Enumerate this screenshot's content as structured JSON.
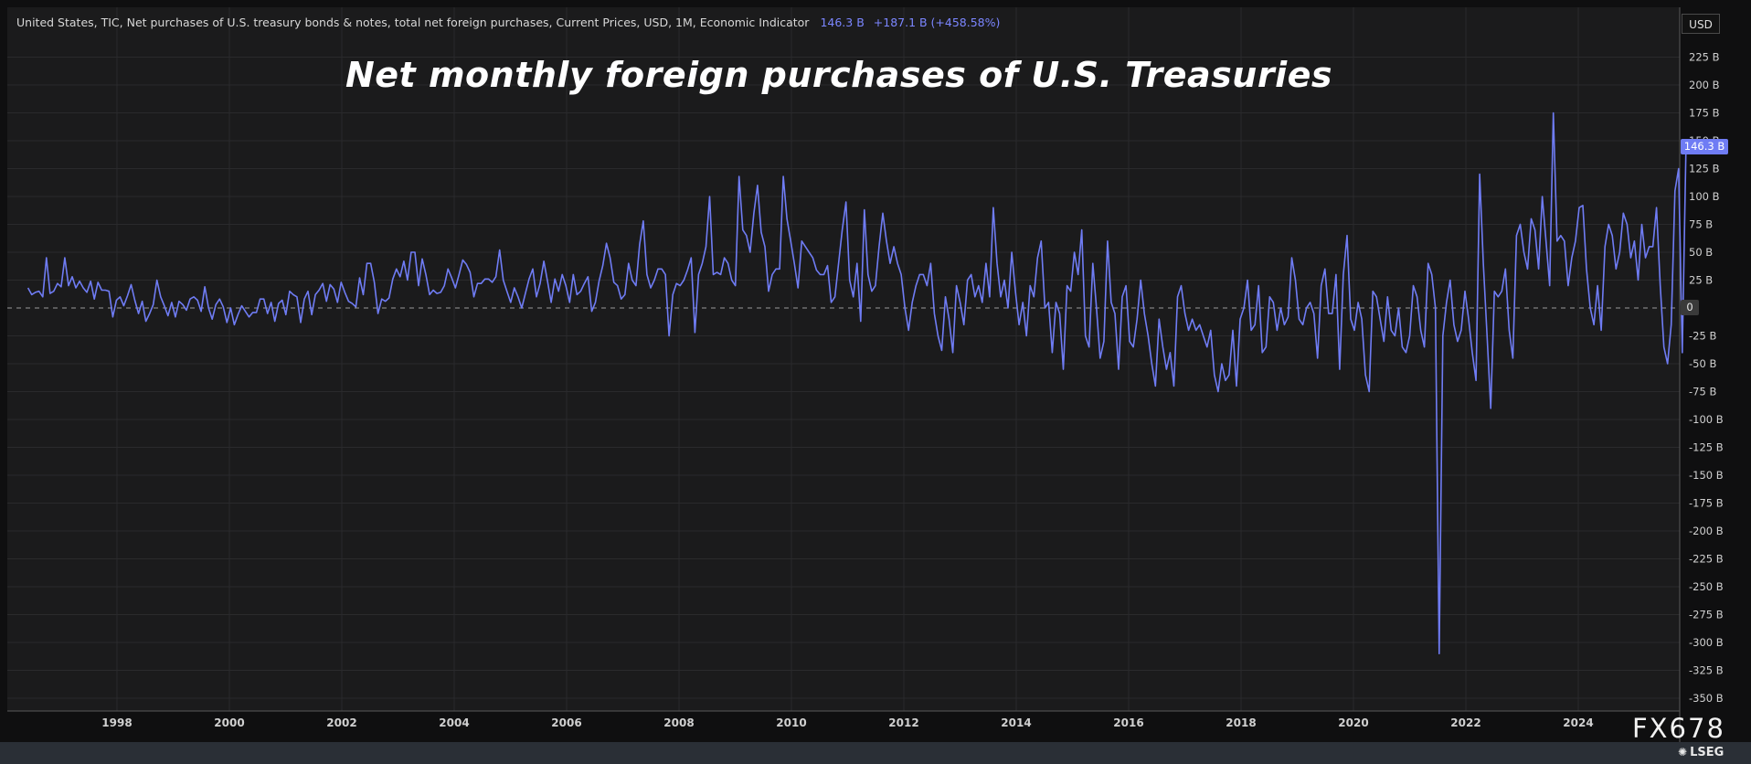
{
  "header": {
    "series_description": "United States, TIC, Net purchases of U.S. treasury bonds & notes, total net foreign purchases, Current Prices, USD, 1M, Economic Indicator",
    "last_value": "146.3 B",
    "change": "+187.1 B (+458.58%)"
  },
  "currency_button": "USD",
  "last_value_badge": "146.3 B",
  "zero_badge": "0",
  "watermark": {
    "code": "FX678",
    "logo": "LSEG",
    "logo_icon": "lseg-emblem-icon"
  },
  "colors": {
    "background": "#1b1b1c",
    "line": "#6f7cf4",
    "grid": "#2b2b2d",
    "text": "#d7d7d7"
  },
  "chart_data": {
    "type": "line",
    "title": "Net monthly foreign purchases of U.S. Treasuries",
    "xlabel": "",
    "ylabel": "",
    "unit": "B USD",
    "x_ticks": [
      "1998",
      "2000",
      "2002",
      "2004",
      "2006",
      "2008",
      "2010",
      "2012",
      "2014",
      "2016",
      "2018",
      "2020",
      "2022",
      "2024"
    ],
    "y_ticks": [
      "225 B",
      "200 B",
      "175 B",
      "150 B",
      "125 B",
      "100 B",
      "75 B",
      "50 B",
      "25 B",
      "0",
      "-25 B",
      "-50 B",
      "-75 B",
      "-100 B",
      "-125 B",
      "-150 B",
      "-175 B",
      "-200 B",
      "-225 B",
      "-250 B",
      "-275 B",
      "-300 B",
      "-325 B",
      "-350 B"
    ],
    "ylim": [
      -350,
      250
    ],
    "xlim": [
      "1996-06",
      "2025-12"
    ],
    "grid": true,
    "zero_line": "dashed",
    "series": [
      {
        "start": "1996-06",
        "frequency": "monthly",
        "values": [
          18,
          12,
          14,
          15,
          10,
          45,
          13,
          15,
          22,
          19,
          45,
          20,
          28,
          18,
          24,
          18,
          14,
          24,
          8,
          23,
          16,
          16,
          15,
          -8,
          7,
          10,
          2,
          11,
          21,
          7,
          -5,
          6,
          -12,
          -5,
          3,
          25,
          10,
          2,
          -7,
          5,
          -8,
          6,
          3,
          -2,
          8,
          10,
          7,
          -3,
          19,
          0,
          -10,
          3,
          8,
          1,
          -13,
          0,
          -15,
          -6,
          2,
          -3,
          -8,
          -4,
          -4,
          8,
          8,
          -5,
          5,
          -12,
          4,
          7,
          -6,
          15,
          12,
          10,
          -13,
          8,
          15,
          -6,
          12,
          16,
          22,
          6,
          21,
          17,
          5,
          23,
          14,
          6,
          4,
          1,
          27,
          12,
          40,
          40,
          23,
          -5,
          8,
          6,
          9,
          26,
          35,
          28,
          42,
          25,
          50,
          50,
          20,
          44,
          30,
          12,
          16,
          13,
          14,
          20,
          35,
          27,
          18,
          30,
          43,
          39,
          32,
          10,
          22,
          22,
          26,
          26,
          23,
          28,
          52,
          25,
          15,
          5,
          18,
          10,
          0,
          13,
          26,
          35,
          10,
          22,
          42,
          24,
          5,
          26,
          15,
          30,
          20,
          5,
          30,
          12,
          15,
          22,
          28,
          -3,
          5,
          24,
          38,
          58,
          45,
          23,
          20,
          8,
          12,
          40,
          25,
          20,
          57,
          78,
          30,
          18,
          25,
          35,
          35,
          30,
          -25,
          12,
          22,
          20,
          25,
          34,
          45,
          -22,
          30,
          40,
          55,
          100,
          30,
          32,
          30,
          45,
          40,
          25,
          20,
          118,
          70,
          65,
          50,
          85,
          110,
          68,
          55,
          15,
          30,
          35,
          35,
          118,
          80,
          60,
          40,
          18,
          60,
          55,
          50,
          45,
          34,
          30,
          30,
          38,
          5,
          10,
          40,
          70,
          95,
          25,
          10,
          40,
          -12,
          88,
          30,
          15,
          20,
          55,
          85,
          60,
          40,
          55,
          40,
          30,
          0,
          -20,
          5,
          20,
          30,
          30,
          20,
          40,
          -5,
          -25,
          -38,
          10,
          -10,
          -40,
          20,
          5,
          -15,
          25,
          30,
          10,
          20,
          5,
          40,
          10,
          90,
          40,
          10,
          25,
          0,
          50,
          15,
          -15,
          5,
          -25,
          20,
          10,
          45,
          60,
          0,
          5,
          -40,
          5,
          -5,
          -55,
          20,
          15,
          50,
          30,
          70,
          -25,
          -35,
          40,
          0,
          -45,
          -30,
          60,
          5,
          -5,
          -55,
          10,
          20,
          -30,
          -35,
          -10,
          25,
          -5,
          -25,
          -50,
          -70,
          -10,
          -35,
          -55,
          -40,
          -70,
          10,
          20,
          -5,
          -20,
          -10,
          -20,
          -15,
          -25,
          -35,
          -20,
          -60,
          -75,
          -50,
          -65,
          -60,
          -20,
          -70,
          -10,
          0,
          25,
          -20,
          -15,
          20,
          -40,
          -35,
          10,
          5,
          -20,
          0,
          -15,
          -8,
          45,
          25,
          -10,
          -15,
          0,
          5,
          -5,
          -45,
          20,
          35,
          -5,
          -5,
          30,
          -55,
          30,
          65,
          -10,
          -20,
          5,
          -10,
          -60,
          -75,
          15,
          10,
          -10,
          -30,
          10,
          -20,
          -25,
          0,
          -35,
          -40,
          -25,
          20,
          10,
          -20,
          -35,
          40,
          30,
          0,
          -310,
          -25,
          5,
          25,
          -15,
          -30,
          -20,
          15,
          -10,
          -40,
          -65,
          120,
          40,
          -25,
          -90,
          15,
          10,
          15,
          35,
          -20,
          -45,
          65,
          75,
          50,
          35,
          80,
          70,
          35,
          100,
          60,
          20,
          175,
          60,
          65,
          60,
          20,
          45,
          60,
          90,
          92,
          35,
          0,
          -15,
          20,
          -20,
          55,
          75,
          65,
          35,
          50,
          85,
          75,
          45,
          60,
          25,
          75,
          45,
          55,
          55,
          90,
          20,
          -35,
          -50,
          -15,
          105,
          125,
          -40,
          146
        ]
      }
    ]
  }
}
